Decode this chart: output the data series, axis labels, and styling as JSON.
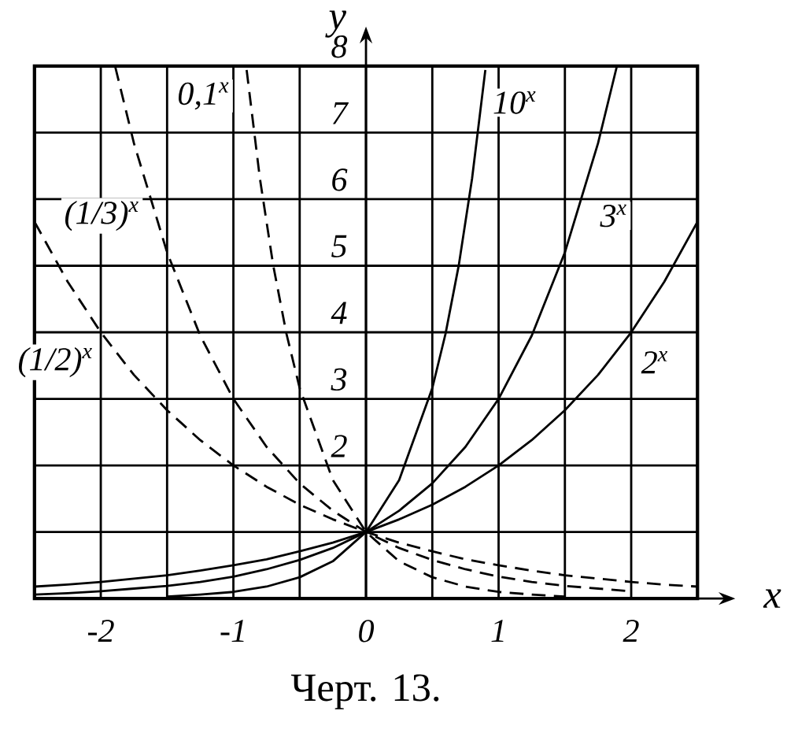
{
  "chart_data": {
    "type": "line",
    "xlabel": "x",
    "ylabel": "y",
    "xlim": [
      -2.5,
      2.5
    ],
    "ylim": [
      0,
      8
    ],
    "xticks": [
      {
        "value": -2.5,
        "label": null
      },
      -2,
      {
        "value": -1.5,
        "label": null
      },
      -1,
      {
        "value": -0.5,
        "label": null
      },
      0,
      {
        "value": 0.5,
        "label": null
      },
      1,
      {
        "value": 1.5,
        "label": null
      },
      2,
      {
        "value": 2.5,
        "label": null
      }
    ],
    "yticks": [
      {
        "value": 1,
        "label": null
      },
      2,
      3,
      4,
      5,
      6,
      7,
      8
    ],
    "grid": true,
    "series": [
      {
        "name": "10$^{x}$",
        "color": "#000000",
        "line_style": "solid",
        "x": [
          -1.5,
          -1.25,
          -1,
          -0.75,
          -0.5,
          -0.25,
          0,
          0.25,
          0.5,
          0.6,
          0.7,
          0.8,
          0.9
        ],
        "values": [
          0.03,
          0.06,
          0.1,
          0.18,
          0.32,
          0.56,
          1,
          1.78,
          3.16,
          3.98,
          5.01,
          6.31,
          7.94
        ]
      },
      {
        "name": "3$^{x}$",
        "color": "#000000",
        "line_style": "solid",
        "x": [
          -2.5,
          -2.25,
          -2,
          -1.75,
          -1.5,
          -1.25,
          -1,
          -0.75,
          -0.5,
          -0.25,
          0,
          0.25,
          0.5,
          0.75,
          1,
          1.25,
          1.5,
          1.75,
          1.89
        ],
        "values": [
          0.06,
          0.08,
          0.11,
          0.15,
          0.19,
          0.25,
          0.33,
          0.44,
          0.58,
          0.76,
          1,
          1.32,
          1.73,
          2.28,
          3,
          3.95,
          5.2,
          6.84,
          7.98
        ]
      },
      {
        "name": "2$^{x}$",
        "color": "#000000",
        "line_style": "solid",
        "x": [
          -2.5,
          -2.25,
          -2,
          -1.75,
          -1.5,
          -1.25,
          -1,
          -0.75,
          -0.5,
          -0.25,
          0,
          0.25,
          0.5,
          0.75,
          1,
          1.25,
          1.5,
          1.75,
          2,
          2.25,
          2.5
        ],
        "values": [
          0.18,
          0.21,
          0.25,
          0.3,
          0.35,
          0.42,
          0.5,
          0.59,
          0.71,
          0.84,
          1,
          1.19,
          1.41,
          1.68,
          2,
          2.38,
          2.83,
          3.36,
          4,
          4.76,
          5.66
        ]
      },
      {
        "name": "0,1$^{x}$",
        "color": "#000000",
        "line_style": "dashed",
        "x": [
          -0.9,
          -0.8,
          -0.7,
          -0.6,
          -0.5,
          -0.25,
          0,
          0.25,
          0.5,
          0.75,
          1,
          1.25,
          1.5
        ],
        "values": [
          7.94,
          6.31,
          5.01,
          3.98,
          3.16,
          1.78,
          1,
          0.56,
          0.32,
          0.18,
          0.1,
          0.06,
          0.03
        ]
      },
      {
        "name": "(1/3)$^{x}$",
        "color": "#000000",
        "line_style": "dashed",
        "x": [
          -1.89,
          -1.75,
          -1.5,
          -1.25,
          -1,
          -0.75,
          -0.5,
          -0.25,
          0,
          0.25,
          0.5,
          0.75,
          1,
          1.25,
          1.5,
          1.75,
          2
        ],
        "values": [
          7.98,
          6.84,
          5.2,
          3.95,
          3,
          2.28,
          1.73,
          1.32,
          1,
          0.76,
          0.58,
          0.44,
          0.33,
          0.25,
          0.19,
          0.15,
          0.11
        ]
      },
      {
        "name": "(1/2)$^{x}$",
        "color": "#000000",
        "line_style": "dashed",
        "x": [
          -2.5,
          -2.25,
          -2,
          -1.75,
          -1.5,
          -1.25,
          -1,
          -0.75,
          -0.5,
          -0.25,
          0,
          0.25,
          0.5,
          0.75,
          1,
          1.25,
          1.5,
          1.75,
          2,
          2.25,
          2.5
        ],
        "values": [
          5.66,
          4.76,
          4,
          3.36,
          2.83,
          2.38,
          2,
          1.68,
          1.41,
          1.19,
          1,
          0.84,
          0.71,
          0.59,
          0.5,
          0.42,
          0.35,
          0.3,
          0.25,
          0.21,
          0.18
        ]
      }
    ],
    "annotations": [
      "Черт. 13."
    ]
  }
}
